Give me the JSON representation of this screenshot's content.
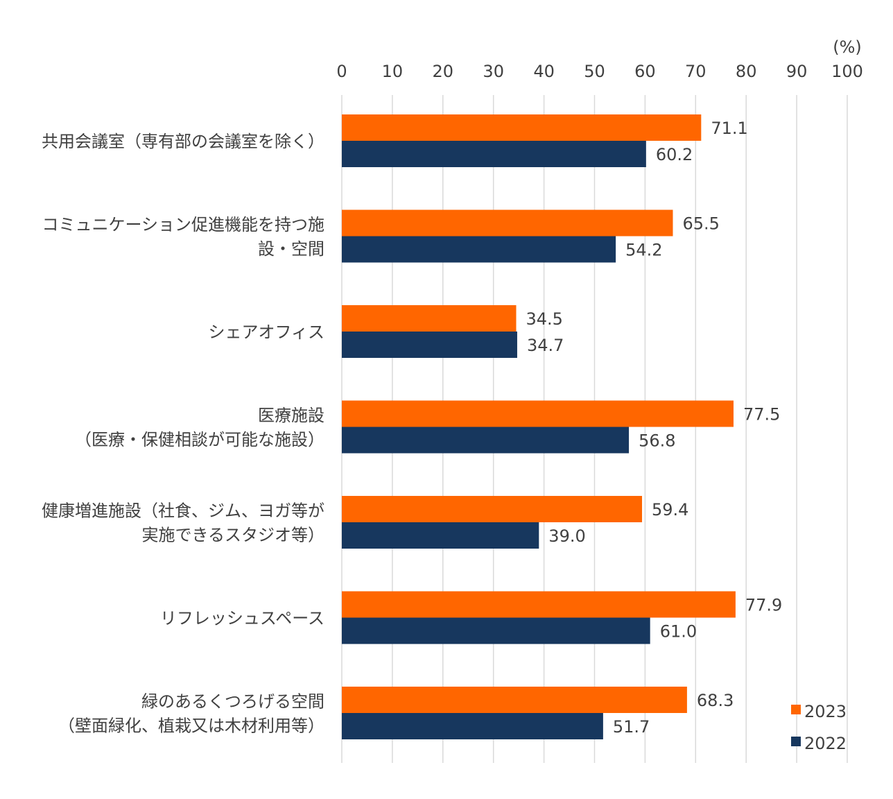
{
  "chart_data": {
    "type": "bar",
    "orientation": "horizontal",
    "unit": "(%)",
    "xlim": [
      0,
      100
    ],
    "ticks": [
      "0",
      "10",
      "20",
      "30",
      "40",
      "50",
      "60",
      "70",
      "80",
      "90",
      "100"
    ],
    "grid": true,
    "legend_position": "bottom-right",
    "categories": [
      [
        "共用会議室（専有部の会議室を除く）"
      ],
      [
        "コミュニケーション促進機能を持つ施",
        "設・空間"
      ],
      [
        "シェアオフィス"
      ],
      [
        "医療施設",
        "（医療・保健相談が可能な施設）"
      ],
      [
        "健康増進施設（社食、ジム、ヨガ等が",
        "実施できるスタジオ等）"
      ],
      [
        "リフレッシュスペース"
      ],
      [
        "緑のあるくつろげる空間",
        "（壁面緑化、植栽又は木材利用等）"
      ]
    ],
    "series": [
      {
        "name": "2023",
        "color": "#ff6600",
        "values": [
          71.1,
          65.5,
          34.5,
          77.5,
          59.4,
          77.9,
          68.3
        ]
      },
      {
        "name": "2022",
        "color": "#17375e",
        "values": [
          60.2,
          54.2,
          34.7,
          56.8,
          39.0,
          61.0,
          51.7
        ]
      }
    ]
  }
}
